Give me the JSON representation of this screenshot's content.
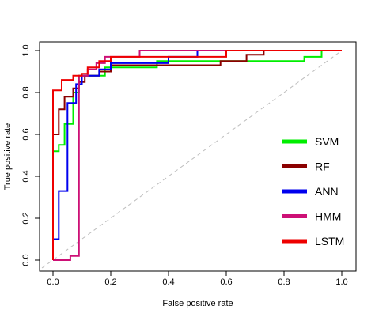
{
  "chart_data": {
    "type": "line",
    "title": "",
    "xlabel": "False positive rate",
    "ylabel": "True positive rate",
    "xlim": [
      0,
      1
    ],
    "ylim": [
      0,
      1
    ],
    "x_ticks": [
      "0.0",
      "0.2",
      "0.4",
      "0.6",
      "0.8",
      "1.0"
    ],
    "y_ticks": [
      "0.0",
      "0.2",
      "0.4",
      "0.6",
      "0.8",
      "1.0"
    ],
    "grid": false,
    "legend_position": "right",
    "diagonal_reference": {
      "from": [
        0,
        0
      ],
      "to": [
        1,
        1
      ],
      "color": "#bebebe",
      "style": "dashed"
    },
    "series": [
      {
        "name": "SVM",
        "color": "#00ee00",
        "points": [
          [
            0,
            0
          ],
          [
            0,
            0.52
          ],
          [
            0.02,
            0.52
          ],
          [
            0.02,
            0.55
          ],
          [
            0.04,
            0.55
          ],
          [
            0.04,
            0.65
          ],
          [
            0.07,
            0.65
          ],
          [
            0.07,
            0.8
          ],
          [
            0.09,
            0.8
          ],
          [
            0.09,
            0.88
          ],
          [
            0.18,
            0.88
          ],
          [
            0.18,
            0.92
          ],
          [
            0.36,
            0.92
          ],
          [
            0.36,
            0.95
          ],
          [
            0.87,
            0.95
          ],
          [
            0.87,
            0.97
          ],
          [
            0.93,
            0.97
          ],
          [
            0.93,
            1.0
          ],
          [
            1.0,
            1.0
          ]
        ]
      },
      {
        "name": "RF",
        "color": "#8b0000",
        "points": [
          [
            0,
            0
          ],
          [
            0,
            0.6
          ],
          [
            0.02,
            0.6
          ],
          [
            0.02,
            0.72
          ],
          [
            0.04,
            0.72
          ],
          [
            0.04,
            0.78
          ],
          [
            0.07,
            0.78
          ],
          [
            0.07,
            0.82
          ],
          [
            0.09,
            0.82
          ],
          [
            0.09,
            0.85
          ],
          [
            0.11,
            0.85
          ],
          [
            0.11,
            0.88
          ],
          [
            0.16,
            0.88
          ],
          [
            0.16,
            0.9
          ],
          [
            0.2,
            0.9
          ],
          [
            0.2,
            0.93
          ],
          [
            0.58,
            0.93
          ],
          [
            0.58,
            0.95
          ],
          [
            0.67,
            0.95
          ],
          [
            0.67,
            0.98
          ],
          [
            0.73,
            0.98
          ],
          [
            0.73,
            1.0
          ],
          [
            1.0,
            1.0
          ]
        ]
      },
      {
        "name": "ANN",
        "color": "#0000ee",
        "points": [
          [
            0,
            0
          ],
          [
            0,
            0.1
          ],
          [
            0.02,
            0.1
          ],
          [
            0.02,
            0.33
          ],
          [
            0.05,
            0.33
          ],
          [
            0.05,
            0.75
          ],
          [
            0.08,
            0.75
          ],
          [
            0.08,
            0.84
          ],
          [
            0.1,
            0.84
          ],
          [
            0.1,
            0.88
          ],
          [
            0.16,
            0.88
          ],
          [
            0.16,
            0.91
          ],
          [
            0.2,
            0.91
          ],
          [
            0.2,
            0.94
          ],
          [
            0.4,
            0.94
          ],
          [
            0.4,
            0.97
          ],
          [
            0.5,
            0.97
          ],
          [
            0.5,
            1.0
          ],
          [
            1.0,
            1.0
          ]
        ]
      },
      {
        "name": "HMM",
        "color": "#cd1076",
        "points": [
          [
            0,
            0
          ],
          [
            0.06,
            0
          ],
          [
            0.06,
            0.02
          ],
          [
            0.09,
            0.02
          ],
          [
            0.09,
            0.88
          ],
          [
            0.12,
            0.88
          ],
          [
            0.12,
            0.91
          ],
          [
            0.15,
            0.91
          ],
          [
            0.15,
            0.94
          ],
          [
            0.18,
            0.94
          ],
          [
            0.18,
            0.97
          ],
          [
            0.3,
            0.97
          ],
          [
            0.3,
            1.0
          ],
          [
            1.0,
            1.0
          ]
        ]
      },
      {
        "name": "LSTM",
        "color": "#ee0000",
        "points": [
          [
            0,
            0
          ],
          [
            0,
            0.81
          ],
          [
            0.03,
            0.81
          ],
          [
            0.03,
            0.86
          ],
          [
            0.07,
            0.86
          ],
          [
            0.07,
            0.88
          ],
          [
            0.1,
            0.88
          ],
          [
            0.1,
            0.89
          ],
          [
            0.12,
            0.89
          ],
          [
            0.12,
            0.92
          ],
          [
            0.16,
            0.92
          ],
          [
            0.16,
            0.95
          ],
          [
            0.2,
            0.95
          ],
          [
            0.2,
            0.97
          ],
          [
            0.6,
            0.97
          ],
          [
            0.6,
            1.0
          ],
          [
            1.0,
            1.0
          ]
        ]
      }
    ]
  }
}
